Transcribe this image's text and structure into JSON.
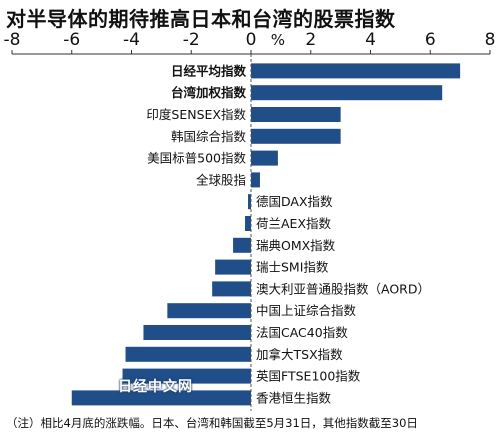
{
  "title": "对半导体的期待推高日本和台湾的股票指数",
  "note": "（注）相比4月底的涨跌幅。日本、台湾和韩国截至5月31日，其他指数截至30日",
  "watermark": "日经中文网",
  "colors": {
    "bar": "#1f4e89",
    "axis": "#333333",
    "grid": "#555555"
  },
  "chart_data": {
    "type": "bar",
    "orientation": "horizontal",
    "unit_label": "%",
    "xlim": [
      -8,
      8
    ],
    "ticks": [
      -8,
      -6,
      -4,
      -2,
      0,
      2,
      4,
      6,
      8
    ],
    "tick_labels": [
      "-8",
      "-6",
      "-4",
      "-2",
      "0",
      "2",
      "4",
      "6",
      "8"
    ],
    "grid": false,
    "categories": [
      "日经平均指数",
      "台湾加权指数",
      "印度SENSEX指数",
      "韩国综合指数",
      "美国标普500指数",
      "全球股指",
      "德国DAX指数",
      "荷兰AEX指数",
      "瑞典OMX指数",
      "瑞士SMI指数",
      "澳大利亚普通股指数（AORD）",
      "中国上证综合指数",
      "法国CAC40指数",
      "加拿大TSX指数",
      "英国FTSE100指数",
      "香港恒生指数"
    ],
    "bold": [
      true,
      true,
      false,
      false,
      false,
      false,
      false,
      false,
      false,
      false,
      false,
      false,
      false,
      false,
      false,
      false
    ],
    "values": [
      7.0,
      6.4,
      3.0,
      3.0,
      0.9,
      0.3,
      -0.1,
      -0.2,
      -0.6,
      -1.2,
      -1.3,
      -2.8,
      -3.6,
      -4.2,
      -4.3,
      -6.0
    ]
  }
}
